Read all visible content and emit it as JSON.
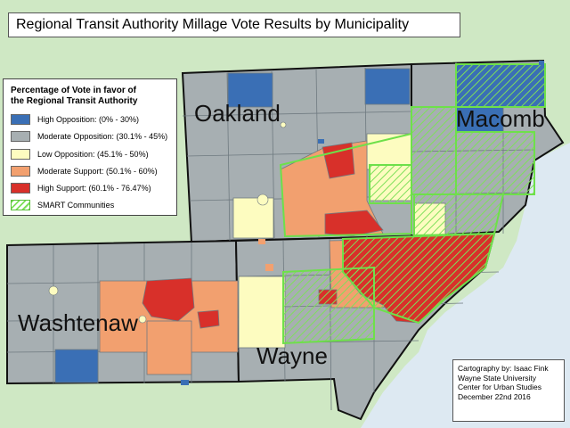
{
  "title": "Regional Transit Authority Millage Vote Results by Municipality",
  "legend": {
    "title_lines": [
      "Percentage of Vote in favor of",
      "the Regional Transit Authority"
    ],
    "items": [
      {
        "label": "High Opposition: (0% - 30%)",
        "color": "#3a6fb5"
      },
      {
        "label": "Moderate Opposition: (30.1% - 45%)",
        "color": "#a7afb2"
      },
      {
        "label": "Low Opposition: (45.1% - 50%)",
        "color": "#fdfcc0"
      },
      {
        "label": "Moderate Support: (50.1% - 60%)",
        "color": "#f2a06f"
      },
      {
        "label": "High Support: (60.1% - 76.47%)",
        "color": "#d8302a"
      },
      {
        "label": "SMART Communities",
        "color": "#7ee05a"
      }
    ]
  },
  "counties": {
    "oakland": "Oakland",
    "macomb": "Macomb",
    "washtenaw": "Washtenaw",
    "wayne": "Wayne"
  },
  "credit": {
    "lines": [
      "Cartography by: Isaac Fink",
      "Wayne State University",
      "Center for Urban Studies",
      "December 22nd 2016"
    ]
  },
  "colors": {
    "background_land": "#cfe8c4",
    "water": "#dde9f2",
    "boundary": "#111111"
  }
}
